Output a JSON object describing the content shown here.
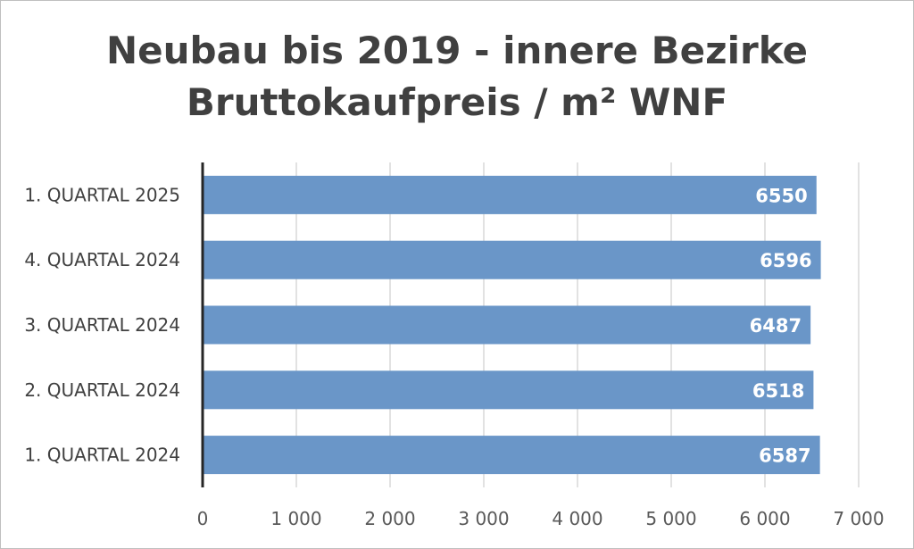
{
  "chart_data": {
    "type": "bar",
    "orientation": "horizontal",
    "title": "Neubau bis 2019 - innere Bezirke",
    "subtitle": "Bruttokaufpreis / m² WNF",
    "categories": [
      "1. QUARTAL 2025",
      "4. QUARTAL 2024",
      "3. QUARTAL 2024",
      "2. QUARTAL 2024",
      "1. QUARTAL 2024"
    ],
    "values": [
      6550,
      6596,
      6487,
      6518,
      6587
    ],
    "x_ticks": [
      0,
      1000,
      2000,
      3000,
      4000,
      5000,
      6000,
      7000
    ],
    "x_tick_labels": [
      "0",
      "1 000",
      "2 000",
      "3 000",
      "4 000",
      "5 000",
      "6 000",
      "7 000"
    ],
    "xlim": [
      0,
      7000
    ],
    "grid": "vertical",
    "bar_color": "#6a96c8",
    "data_label_color": "#ffffff",
    "xlabel": "",
    "ylabel": ""
  }
}
